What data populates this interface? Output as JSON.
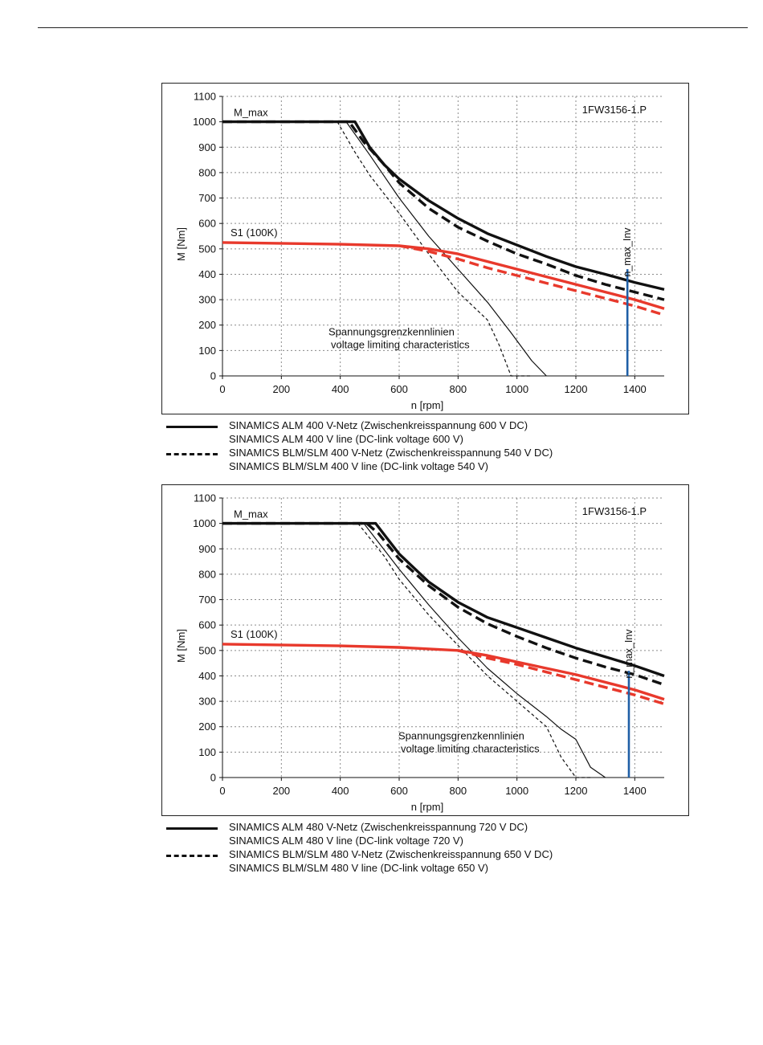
{
  "chart_data": [
    {
      "type": "line",
      "model_label": "1FW3156-1.P",
      "xlabel": "n [rpm]",
      "ylabel": "M [Nm]",
      "xlim": [
        0,
        1500
      ],
      "ylim": [
        0,
        1100
      ],
      "xticks": [
        0,
        200,
        400,
        600,
        800,
        1000,
        1200,
        1400
      ],
      "yticks": [
        0,
        100,
        200,
        300,
        400,
        500,
        600,
        700,
        800,
        900,
        1000,
        1100
      ],
      "grid": true,
      "annotations": {
        "mmax": "M_max",
        "s1": "S1 (100K)",
        "nmax": "n_max_Inv",
        "vlim_line1": "Spannungsgrenzkennlinien",
        "vlim_line2": "voltage limiting characteristics"
      },
      "n_max_inv": 1375,
      "series": [
        {
          "style": "thick-solid",
          "color": "#111111",
          "points": [
            [
              0,
              1000
            ],
            [
              450,
              1000
            ],
            [
              500,
              900
            ],
            [
              550,
              830
            ],
            [
              600,
              775
            ],
            [
              700,
              690
            ],
            [
              800,
              620
            ],
            [
              900,
              560
            ],
            [
              1000,
              515
            ],
            [
              1100,
              470
            ],
            [
              1200,
              430
            ],
            [
              1300,
              400
            ],
            [
              1400,
              368
            ],
            [
              1500,
              340
            ]
          ]
        },
        {
          "style": "thick-dashed",
          "color": "#111111",
          "points": [
            [
              0,
              1000
            ],
            [
              430,
              1000
            ],
            [
              480,
              920
            ],
            [
              550,
              830
            ],
            [
              600,
              760
            ],
            [
              700,
              660
            ],
            [
              800,
              585
            ],
            [
              900,
              530
            ],
            [
              1000,
              480
            ],
            [
              1100,
              440
            ],
            [
              1200,
              395
            ],
            [
              1300,
              360
            ],
            [
              1400,
              330
            ],
            [
              1500,
              300
            ]
          ]
        },
        {
          "style": "thin-solid",
          "color": "#111111",
          "points": [
            [
              420,
              1000
            ],
            [
              500,
              870
            ],
            [
              600,
              700
            ],
            [
              700,
              550
            ],
            [
              800,
              420
            ],
            [
              900,
              290
            ],
            [
              980,
              170
            ],
            [
              1050,
              60
            ],
            [
              1100,
              0
            ]
          ]
        },
        {
          "style": "thin-dashed",
          "color": "#111111",
          "points": [
            [
              390,
              1000
            ],
            [
              450,
              880
            ],
            [
              500,
              790
            ],
            [
              600,
              640
            ],
            [
              700,
              480
            ],
            [
              800,
              330
            ],
            [
              900,
              220
            ],
            [
              940,
              120
            ],
            [
              980,
              0
            ],
            [
              1050,
              0
            ]
          ]
        },
        {
          "style": "thick-solid",
          "color": "#e8392c",
          "points": [
            [
              0,
              525
            ],
            [
              400,
              518
            ],
            [
              600,
              512
            ],
            [
              700,
              500
            ],
            [
              800,
              480
            ],
            [
              900,
              450
            ],
            [
              1000,
              420
            ],
            [
              1100,
              390
            ],
            [
              1200,
              360
            ],
            [
              1300,
              330
            ],
            [
              1400,
              300
            ],
            [
              1500,
              265
            ]
          ]
        },
        {
          "style": "thick-dashed",
          "color": "#e8392c",
          "points": [
            [
              600,
              512
            ],
            [
              700,
              490
            ],
            [
              800,
              460
            ],
            [
              900,
              425
            ],
            [
              1000,
              395
            ],
            [
              1100,
              365
            ],
            [
              1200,
              335
            ],
            [
              1300,
              305
            ],
            [
              1400,
              275
            ],
            [
              1500,
              240
            ]
          ]
        }
      ]
    },
    {
      "type": "line",
      "model_label": "1FW3156-1.P",
      "xlabel": "n [rpm]",
      "ylabel": "M [Nm]",
      "xlim": [
        0,
        1500
      ],
      "ylim": [
        0,
        1100
      ],
      "xticks": [
        0,
        200,
        400,
        600,
        800,
        1000,
        1200,
        1400
      ],
      "yticks": [
        0,
        100,
        200,
        300,
        400,
        500,
        600,
        700,
        800,
        900,
        1000,
        1100
      ],
      "grid": true,
      "annotations": {
        "mmax": "M_max",
        "s1": "S1 (100K)",
        "nmax": "n_max_Inv",
        "vlim_line1": "Spannungsgrenzkennlinien",
        "vlim_line2": "voltage limiting characteristics"
      },
      "n_max_inv": 1380,
      "series": [
        {
          "style": "thick-solid",
          "color": "#111111",
          "points": [
            [
              0,
              1000
            ],
            [
              520,
              1000
            ],
            [
              560,
              940
            ],
            [
              600,
              880
            ],
            [
              700,
              770
            ],
            [
              800,
              690
            ],
            [
              900,
              630
            ],
            [
              1000,
              590
            ],
            [
              1100,
              550
            ],
            [
              1200,
              510
            ],
            [
              1300,
              475
            ],
            [
              1400,
              440
            ],
            [
              1500,
              400
            ]
          ]
        },
        {
          "style": "thick-dashed",
          "color": "#111111",
          "points": [
            [
              0,
              1000
            ],
            [
              490,
              1000
            ],
            [
              530,
              960
            ],
            [
              600,
              860
            ],
            [
              700,
              755
            ],
            [
              800,
              670
            ],
            [
              900,
              605
            ],
            [
              1000,
              555
            ],
            [
              1100,
              510
            ],
            [
              1200,
              470
            ],
            [
              1300,
              435
            ],
            [
              1400,
              405
            ],
            [
              1500,
              365
            ]
          ]
        },
        {
          "style": "thin-solid",
          "color": "#111111",
          "points": [
            [
              480,
              1000
            ],
            [
              600,
              820
            ],
            [
              700,
              680
            ],
            [
              800,
              550
            ],
            [
              900,
              430
            ],
            [
              1000,
              330
            ],
            [
              1100,
              240
            ],
            [
              1150,
              190
            ],
            [
              1200,
              150
            ],
            [
              1250,
              40
            ],
            [
              1300,
              0
            ]
          ]
        },
        {
          "style": "thin-dashed",
          "color": "#111111",
          "points": [
            [
              460,
              1000
            ],
            [
              550,
              870
            ],
            [
              600,
              780
            ],
            [
              700,
              640
            ],
            [
              800,
              520
            ],
            [
              900,
              400
            ],
            [
              1000,
              300
            ],
            [
              1060,
              240
            ],
            [
              1100,
              200
            ],
            [
              1150,
              80
            ],
            [
              1200,
              0
            ],
            [
              1250,
              0
            ]
          ]
        },
        {
          "style": "thick-solid",
          "color": "#e8392c",
          "points": [
            [
              0,
              525
            ],
            [
              400,
              518
            ],
            [
              600,
              512
            ],
            [
              800,
              500
            ],
            [
              900,
              480
            ],
            [
              1000,
              455
            ],
            [
              1100,
              430
            ],
            [
              1200,
              405
            ],
            [
              1300,
              375
            ],
            [
              1400,
              345
            ],
            [
              1500,
              308
            ]
          ]
        },
        {
          "style": "thick-dashed",
          "color": "#e8392c",
          "points": [
            [
              800,
              500
            ],
            [
              900,
              470
            ],
            [
              1000,
              445
            ],
            [
              1100,
              415
            ],
            [
              1200,
              385
            ],
            [
              1300,
              355
            ],
            [
              1400,
              325
            ],
            [
              1500,
              290
            ]
          ]
        }
      ]
    }
  ],
  "legends": [
    {
      "items": [
        {
          "style": "solid",
          "line1": "SINAMICS ALM  400 V-Netz (Zwischenkreisspannung 600 V DC)",
          "line2": "SINAMICS ALM  400 V line (DC-link voltage 600 V)"
        },
        {
          "style": "dashed",
          "line1": "SINAMICS BLM/SLM  400 V-Netz (Zwischenkreisspannung 540 V DC)",
          "line2": "SINAMICS BLM/SLM  400 V line (DC-link voltage 540 V)"
        }
      ]
    },
    {
      "items": [
        {
          "style": "solid",
          "line1": "SINAMICS ALM  480 V-Netz (Zwischenkreisspannung 720 V DC)",
          "line2": "SINAMICS ALM  480 V line (DC-link voltage 720 V)"
        },
        {
          "style": "dashed",
          "line1": "SINAMICS BLM/SLM  480 V-Netz (Zwischenkreisspannung 650 V DC)",
          "line2": "SINAMICS BLM/SLM  480 V line (DC-link voltage 650 V)"
        }
      ]
    }
  ]
}
